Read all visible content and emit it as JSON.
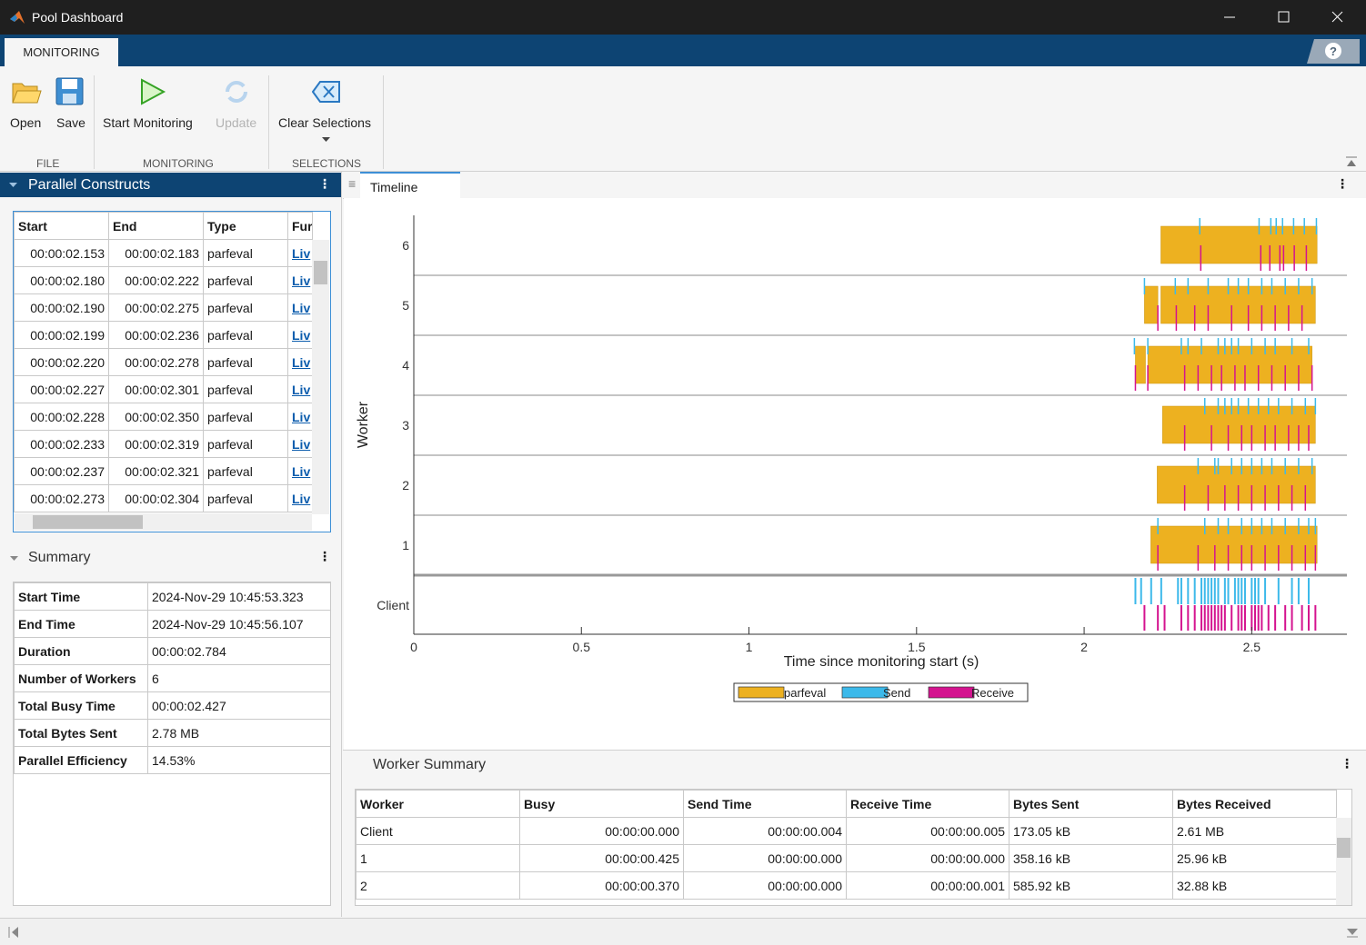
{
  "window": {
    "title": "Pool Dashboard"
  },
  "tabs": [
    "MONITORING"
  ],
  "toolbar": {
    "sections": [
      {
        "label": "FILE",
        "buttons": [
          "Open",
          "Save"
        ]
      },
      {
        "label": "MONITORING",
        "buttons": [
          "Start Monitoring",
          "Update"
        ]
      },
      {
        "label": "SELECTIONS",
        "buttons": [
          "Clear Selections"
        ]
      }
    ]
  },
  "parallel_constructs": {
    "title": "Parallel Constructs",
    "columns": [
      "Start",
      "End",
      "Type",
      "Fur"
    ],
    "rows": [
      [
        "00:00:02.153",
        "00:00:02.183",
        "parfeval",
        "Liv"
      ],
      [
        "00:00:02.180",
        "00:00:02.222",
        "parfeval",
        "Liv"
      ],
      [
        "00:00:02.190",
        "00:00:02.275",
        "parfeval",
        "Liv"
      ],
      [
        "00:00:02.199",
        "00:00:02.236",
        "parfeval",
        "Liv"
      ],
      [
        "00:00:02.220",
        "00:00:02.278",
        "parfeval",
        "Liv"
      ],
      [
        "00:00:02.227",
        "00:00:02.301",
        "parfeval",
        "Liv"
      ],
      [
        "00:00:02.228",
        "00:00:02.350",
        "parfeval",
        "Liv"
      ],
      [
        "00:00:02.233",
        "00:00:02.319",
        "parfeval",
        "Liv"
      ],
      [
        "00:00:02.237",
        "00:00:02.321",
        "parfeval",
        "Liv"
      ],
      [
        "00:00:02.273",
        "00:00:02.304",
        "parfeval",
        "Liv"
      ]
    ]
  },
  "summary": {
    "title": "Summary",
    "rows": [
      [
        "Start Time",
        "2024-Nov-29 10:45:53.323"
      ],
      [
        "End Time",
        "2024-Nov-29 10:45:56.107"
      ],
      [
        "Duration",
        "00:00:02.784"
      ],
      [
        "Number of Workers",
        "6"
      ],
      [
        "Total Busy Time",
        "00:00:02.427"
      ],
      [
        "Total Bytes Sent",
        "2.78 MB"
      ],
      [
        "Parallel Efficiency",
        "14.53%"
      ]
    ]
  },
  "timeline_tab": "Timeline",
  "chart_data": {
    "type": "timeline",
    "xlabel": "Time since monitoring start (s)",
    "ylabel": "Worker",
    "categories": [
      "6",
      "5",
      "4",
      "3",
      "2",
      "1",
      "Client"
    ],
    "xlim": [
      0,
      2.784
    ],
    "xticks": [
      0,
      0.5,
      1,
      1.5,
      2,
      2.5
    ],
    "series": [
      {
        "name": "parfeval",
        "color": "#edb120",
        "values": [
          [
            [
              2.229,
              2.695
            ]
          ],
          [
            [
              2.18,
              2.22
            ],
            [
              2.229,
              2.69
            ]
          ],
          [
            [
              2.153,
              2.183
            ],
            [
              2.19,
              2.68
            ]
          ],
          [
            [
              2.234,
              2.69
            ]
          ],
          [
            [
              2.218,
              2.69
            ]
          ],
          [
            [
              2.199,
              2.695
            ]
          ],
          []
        ]
      },
      {
        "name": "Send",
        "color": "#3cb9ea",
        "values": [
          [
            2.345,
            2.522,
            2.557,
            2.573,
            2.592,
            2.625,
            2.657,
            2.693
          ],
          [
            2.18,
            2.272,
            2.31,
            2.37,
            2.43,
            2.46,
            2.49,
            2.53,
            2.56,
            2.6,
            2.64,
            2.68
          ],
          [
            2.15,
            2.19,
            2.29,
            2.31,
            2.35,
            2.4,
            2.42,
            2.44,
            2.46,
            2.5,
            2.54,
            2.57,
            2.62,
            2.67
          ],
          [
            2.36,
            2.4,
            2.42,
            2.44,
            2.46,
            2.49,
            2.52,
            2.55,
            2.58,
            2.62,
            2.66,
            2.69
          ],
          [
            2.34,
            2.39,
            2.4,
            2.44,
            2.47,
            2.5,
            2.53,
            2.56,
            2.6,
            2.64,
            2.68
          ],
          [
            2.22,
            2.36,
            2.4,
            2.43,
            2.47,
            2.5,
            2.53,
            2.56,
            2.6,
            2.64,
            2.67,
            2.69
          ],
          [
            2.153,
            2.17,
            2.2,
            2.23,
            2.28,
            2.29,
            2.31,
            2.33,
            2.35,
            2.36,
            2.37,
            2.38,
            2.39,
            2.4,
            2.42,
            2.43,
            2.45,
            2.46,
            2.47,
            2.48,
            2.5,
            2.51,
            2.52,
            2.54,
            2.58,
            2.62,
            2.64,
            2.67
          ]
        ]
      },
      {
        "name": "Receive",
        "color": "#d4138f",
        "values": [
          [
            2.348,
            2.527,
            2.554,
            2.584,
            2.595,
            2.627,
            2.663
          ],
          [
            2.22,
            2.275,
            2.33,
            2.37,
            2.44,
            2.49,
            2.53,
            2.57,
            2.61,
            2.65
          ],
          [
            2.153,
            2.19,
            2.3,
            2.34,
            2.38,
            2.41,
            2.45,
            2.48,
            2.52,
            2.56,
            2.6,
            2.64,
            2.68
          ],
          [
            2.3,
            2.38,
            2.43,
            2.47,
            2.5,
            2.54,
            2.57,
            2.61,
            2.64,
            2.67
          ],
          [
            2.3,
            2.37,
            2.42,
            2.46,
            2.5,
            2.54,
            2.58,
            2.62,
            2.66
          ],
          [
            2.22,
            2.34,
            2.39,
            2.43,
            2.47,
            2.5,
            2.54,
            2.58,
            2.62,
            2.66,
            2.69
          ],
          [
            2.18,
            2.22,
            2.24,
            2.29,
            2.31,
            2.33,
            2.35,
            2.36,
            2.37,
            2.38,
            2.39,
            2.4,
            2.41,
            2.42,
            2.44,
            2.46,
            2.47,
            2.48,
            2.5,
            2.51,
            2.52,
            2.53,
            2.55,
            2.57,
            2.6,
            2.62,
            2.65,
            2.67,
            2.69
          ]
        ]
      }
    ],
    "legend": "bottom"
  },
  "worker_summary": {
    "title": "Worker Summary",
    "columns": [
      "Worker",
      "Busy",
      "Send Time",
      "Receive Time",
      "Bytes Sent",
      "Bytes Received"
    ],
    "rows": [
      [
        "Client",
        "00:00:00.000",
        "00:00:00.004",
        "00:00:00.005",
        "173.05 kB",
        "2.61 MB"
      ],
      [
        "1",
        "00:00:00.425",
        "00:00:00.000",
        "00:00:00.000",
        "358.16 kB",
        "25.96 kB"
      ],
      [
        "2",
        "00:00:00.370",
        "00:00:00.000",
        "00:00:00.001",
        "585.92 kB",
        "32.88 kB"
      ]
    ]
  }
}
